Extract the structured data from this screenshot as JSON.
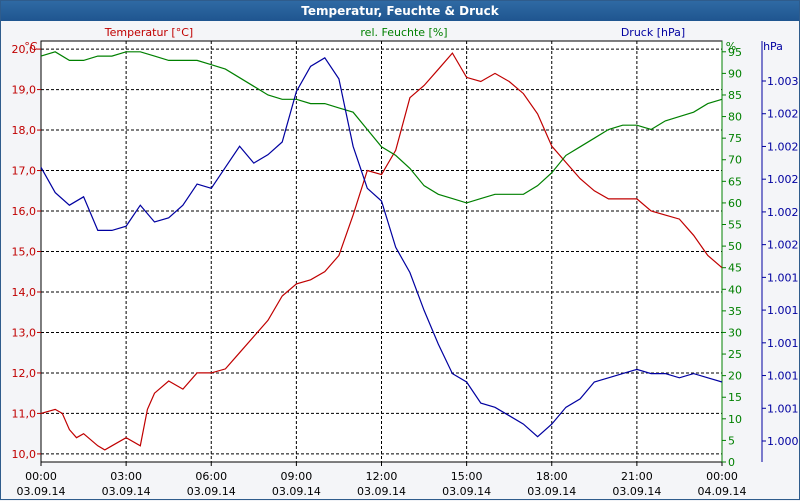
{
  "window": {
    "title": "Temperatur, Feuchte & Druck"
  },
  "chart_data": {
    "type": "line",
    "title": "Temperatur, Feuchte & Druck",
    "colors": {
      "temperature": "#c00000",
      "humidity": "#008000",
      "pressure": "#0000a0",
      "grid": "#000000"
    },
    "grid": true,
    "x_tick_labels": [
      {
        "time": "00:00",
        "date": "03.09.14"
      },
      {
        "time": "03:00",
        "date": "03.09.14"
      },
      {
        "time": "06:00",
        "date": "03.09.14"
      },
      {
        "time": "09:00",
        "date": "03.09.14"
      },
      {
        "time": "12:00",
        "date": "03.09.14"
      },
      {
        "time": "15:00",
        "date": "03.09.14"
      },
      {
        "time": "18:00",
        "date": "03.09.14"
      },
      {
        "time": "21:00",
        "date": "03.09.14"
      },
      {
        "time": "00:00",
        "date": "04.09.14"
      }
    ],
    "xlim": [
      "00:00",
      "24:00"
    ],
    "axes": {
      "temperature": {
        "label": "Temperatur [°C]",
        "unit": "°C",
        "ylim": [
          9.8,
          20.2
        ],
        "ticks": [
          "10,0",
          "11,0",
          "12,0",
          "13,0",
          "14,0",
          "15,0",
          "16,0",
          "17,0",
          "18,0",
          "19,0",
          "20,0"
        ],
        "tick_values": [
          10,
          11,
          12,
          13,
          14,
          15,
          16,
          17,
          18,
          19,
          20
        ]
      },
      "humidity": {
        "label": "rel. Feuchte [%]",
        "unit": "%",
        "ylim": [
          0,
          97.5
        ],
        "ticks": [
          "0",
          "5",
          "10",
          "15",
          "20",
          "25",
          "30",
          "35",
          "40",
          "45",
          "50",
          "55",
          "60",
          "65",
          "70",
          "75",
          "80",
          "85",
          "90",
          "95"
        ],
        "tick_values": [
          0,
          5,
          10,
          15,
          20,
          25,
          30,
          35,
          40,
          45,
          50,
          55,
          60,
          65,
          70,
          75,
          80,
          85,
          90,
          95
        ]
      },
      "pressure": {
        "label": "Druck [hPa]",
        "unit": "hPa",
        "ticks": [
          "1.003",
          "1.002",
          "1.002",
          "1.002",
          "1.002",
          "1.002",
          "1.001",
          "1.001",
          "1.001",
          "1.001",
          "1.001",
          "1.000"
        ]
      }
    },
    "series": [
      {
        "name": "Temperatur [°C]",
        "axis": "temperature",
        "x": [
          0,
          0.5,
          0.75,
          1,
          1.25,
          1.5,
          2,
          2.25,
          2.5,
          3,
          3.5,
          3.75,
          4,
          4.5,
          5,
          5.5,
          6,
          6.5,
          7,
          7.5,
          8,
          8.5,
          9,
          9.5,
          10,
          10.5,
          11,
          11.5,
          12,
          12.5,
          13,
          13.5,
          14,
          14.5,
          15,
          15.5,
          16,
          16.5,
          17,
          17.5,
          18,
          18.5,
          19,
          19.5,
          20,
          20.5,
          21,
          21.5,
          22,
          22.5,
          23,
          23.5,
          24
        ],
        "y": [
          11.0,
          11.1,
          11.0,
          10.6,
          10.4,
          10.5,
          10.2,
          10.1,
          10.2,
          10.4,
          10.2,
          11.1,
          11.5,
          11.8,
          11.6,
          12.0,
          12.0,
          12.1,
          12.5,
          12.9,
          13.3,
          13.9,
          14.2,
          14.3,
          14.5,
          14.9,
          15.9,
          17.0,
          16.9,
          17.5,
          18.8,
          19.1,
          19.5,
          19.9,
          19.3,
          19.2,
          19.4,
          19.2,
          18.9,
          18.4,
          17.6,
          17.2,
          16.8,
          16.5,
          16.3,
          16.3,
          16.3,
          16.0,
          15.9,
          15.8,
          15.4,
          14.9,
          14.6
        ]
      },
      {
        "name": "rel. Feuchte [%]",
        "axis": "humidity",
        "x": [
          0,
          0.5,
          1,
          1.5,
          2,
          2.5,
          3,
          3.5,
          4,
          4.5,
          5,
          5.5,
          6,
          6.5,
          7,
          7.5,
          8,
          8.5,
          9,
          9.5,
          10,
          10.5,
          11,
          11.5,
          12,
          12.5,
          13,
          13.5,
          14,
          14.5,
          15,
          15.5,
          16,
          16.5,
          17,
          17.5,
          18,
          18.5,
          19,
          19.5,
          20,
          20.5,
          21,
          21.5,
          22,
          22.5,
          23,
          23.5,
          24
        ],
        "y": [
          94,
          95,
          93,
          93,
          94,
          94,
          95,
          95,
          94,
          93,
          93,
          93,
          92,
          91,
          89,
          87,
          85,
          84,
          84,
          83,
          83,
          82,
          81,
          77,
          73,
          71,
          68,
          64,
          62,
          61,
          60,
          61,
          62,
          62,
          62,
          64,
          67,
          71,
          73,
          75,
          77,
          78,
          78,
          77,
          79,
          80,
          81,
          83,
          84
        ]
      },
      {
        "name": "Druck [hPa]",
        "axis": "pressure",
        "x": [
          0,
          0.5,
          1,
          1.5,
          2,
          2.5,
          3,
          3.5,
          4,
          4.5,
          5,
          5.5,
          6,
          6.5,
          7,
          7.5,
          8,
          8.5,
          9,
          9.5,
          10,
          10.5,
          11,
          11.5,
          12,
          12.5,
          13,
          13.5,
          14,
          14.5,
          15,
          15.5,
          16,
          16.5,
          17,
          17.5,
          18,
          18.5,
          19,
          19.5,
          20,
          20.5,
          21,
          21.5,
          22,
          22.5,
          23,
          23.5,
          24
        ],
        "y": [
          70,
          64,
          61,
          63,
          55,
          55,
          56,
          61,
          57,
          58,
          61,
          66,
          65,
          70,
          75,
          71,
          73,
          76,
          88,
          94,
          96,
          91,
          75,
          65,
          62,
          51,
          45,
          36,
          28,
          21,
          19,
          14,
          13,
          11,
          9,
          6,
          9,
          13,
          15,
          19,
          20,
          21,
          22,
          21,
          21,
          20,
          21,
          20,
          19
        ]
      }
    ]
  }
}
